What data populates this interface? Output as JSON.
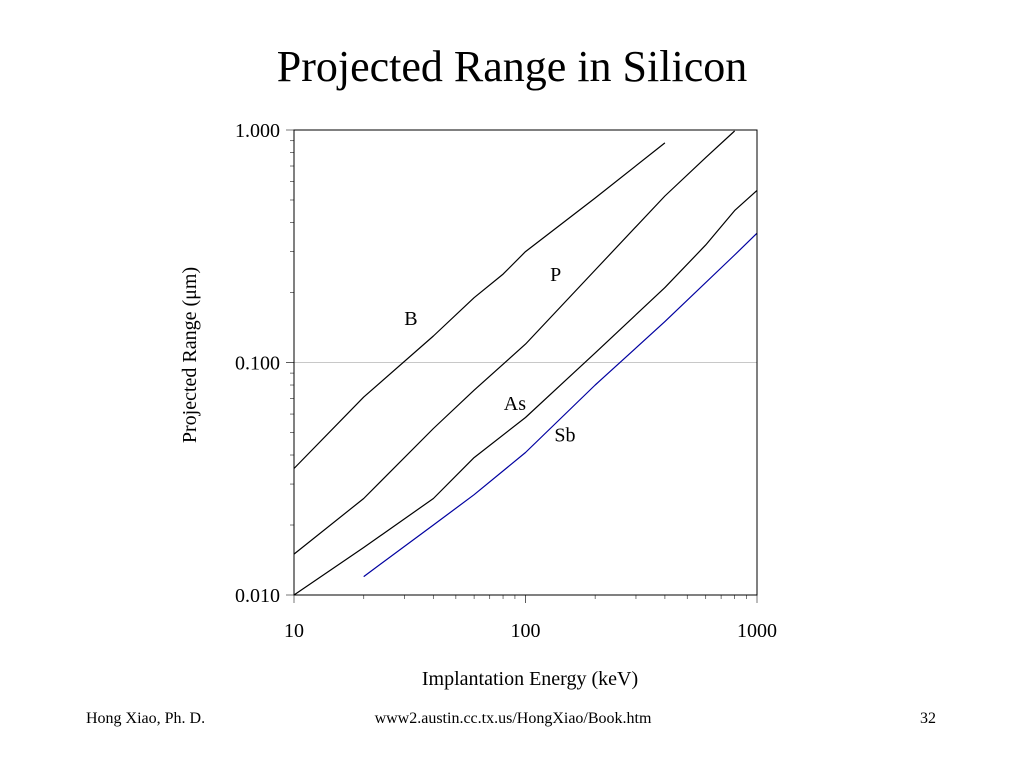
{
  "slide": {
    "title": "Projected Range in Silicon",
    "footer_left": "Hong Xiao, Ph. D.",
    "footer_center": "www2.austin.cc.tx.us/HongXiao/Book.htm",
    "footer_right": "32"
  },
  "chart_data": {
    "type": "line",
    "title": "",
    "xlabel": "Implantation Energy (keV)",
    "ylabel": "Projected Range (μm)",
    "x_scale": "log",
    "y_scale": "log",
    "xlim": [
      10,
      1000
    ],
    "ylim": [
      0.01,
      1.0
    ],
    "x_ticks": [
      {
        "value": 10,
        "label": "10"
      },
      {
        "value": 100,
        "label": "100"
      },
      {
        "value": 1000,
        "label": "1000"
      }
    ],
    "y_ticks": [
      {
        "value": 0.01,
        "label": "0.010"
      },
      {
        "value": 0.1,
        "label": "0.100"
      },
      {
        "value": 1.0,
        "label": "1.000"
      }
    ],
    "grid": "horizontal line at 0.100",
    "legend": "none (inline curve labels)",
    "series": [
      {
        "name": "B",
        "color": "#000000",
        "label_at": {
          "x": 32,
          "y": 0.155
        },
        "points": [
          {
            "x": 10,
            "y": 0.035
          },
          {
            "x": 20,
            "y": 0.071
          },
          {
            "x": 40,
            "y": 0.13
          },
          {
            "x": 60,
            "y": 0.19
          },
          {
            "x": 80,
            "y": 0.24
          },
          {
            "x": 100,
            "y": 0.3
          },
          {
            "x": 200,
            "y": 0.51
          },
          {
            "x": 400,
            "y": 0.88
          }
        ]
      },
      {
        "name": "P",
        "color": "#000000",
        "label_at": {
          "x": 135,
          "y": 0.24
        },
        "points": [
          {
            "x": 10,
            "y": 0.015
          },
          {
            "x": 20,
            "y": 0.026
          },
          {
            "x": 40,
            "y": 0.052
          },
          {
            "x": 60,
            "y": 0.076
          },
          {
            "x": 100,
            "y": 0.12
          },
          {
            "x": 200,
            "y": 0.25
          },
          {
            "x": 400,
            "y": 0.52
          },
          {
            "x": 600,
            "y": 0.76
          },
          {
            "x": 800,
            "y": 0.99
          }
        ]
      },
      {
        "name": "As",
        "color": "#000000",
        "label_at": {
          "x": 90,
          "y": 0.067
        },
        "points": [
          {
            "x": 10,
            "y": 0.01
          },
          {
            "x": 20,
            "y": 0.016
          },
          {
            "x": 40,
            "y": 0.026
          },
          {
            "x": 60,
            "y": 0.039
          },
          {
            "x": 100,
            "y": 0.058
          },
          {
            "x": 200,
            "y": 0.11
          },
          {
            "x": 400,
            "y": 0.21
          },
          {
            "x": 600,
            "y": 0.32
          },
          {
            "x": 800,
            "y": 0.45
          },
          {
            "x": 1000,
            "y": 0.55
          }
        ]
      },
      {
        "name": "Sb",
        "color": "#0000a0",
        "label_at": {
          "x": 148,
          "y": 0.049
        },
        "points": [
          {
            "x": 20,
            "y": 0.012
          },
          {
            "x": 40,
            "y": 0.02
          },
          {
            "x": 60,
            "y": 0.027
          },
          {
            "x": 100,
            "y": 0.041
          },
          {
            "x": 200,
            "y": 0.08
          },
          {
            "x": 400,
            "y": 0.15
          },
          {
            "x": 800,
            "y": 0.29
          },
          {
            "x": 1000,
            "y": 0.36
          }
        ]
      }
    ]
  }
}
